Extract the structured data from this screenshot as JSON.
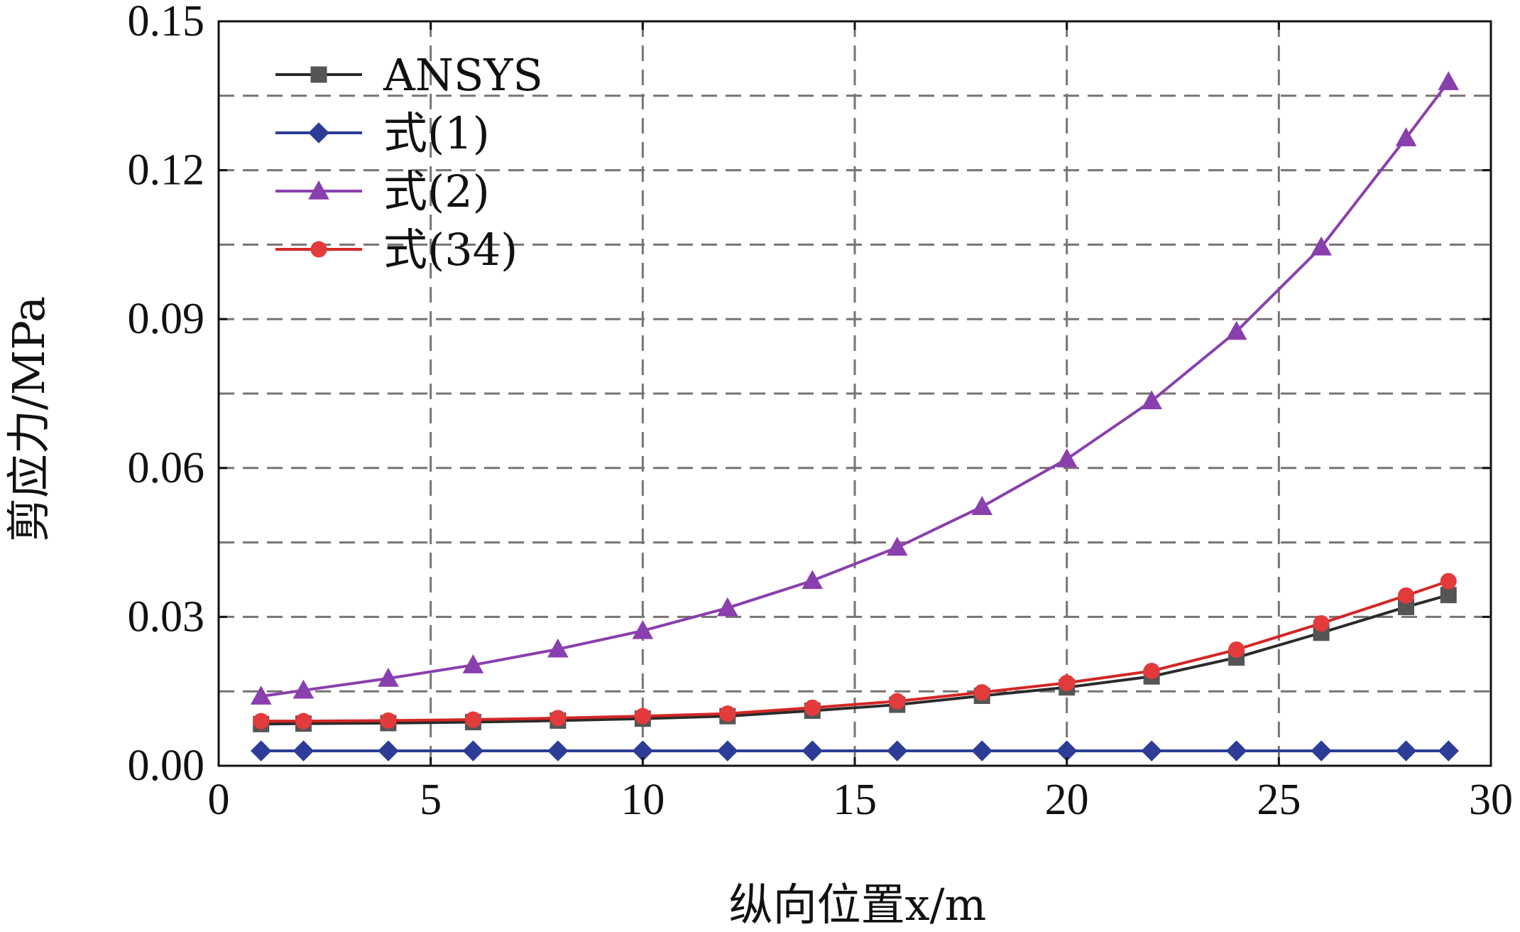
{
  "chart_data": {
    "type": "line",
    "xlabel": "纵向位置x/m",
    "ylabel": "剪应力/MPa",
    "xlim": [
      0,
      30
    ],
    "ylim": [
      0,
      0.15
    ],
    "x_ticks": [
      "0",
      "5",
      "10",
      "15",
      "20",
      "25",
      "30"
    ],
    "y_ticks": [
      "0.00",
      "0.03",
      "0.06",
      "0.09",
      "0.12",
      "0.15"
    ],
    "grid": true,
    "grid_style": "dashed",
    "legend_position": "top-left",
    "series": [
      {
        "name": "ANSYS",
        "color": "#2b2b2b",
        "marker_color": "#555555",
        "marker": "square",
        "x": [
          1,
          2,
          4,
          6,
          8,
          10,
          12,
          14,
          16,
          18,
          20,
          22,
          24,
          26,
          28,
          29
        ],
        "y": [
          0.0084,
          0.0085,
          0.0086,
          0.0088,
          0.0091,
          0.0095,
          0.01,
          0.0111,
          0.0123,
          0.0141,
          0.0158,
          0.018,
          0.0218,
          0.0268,
          0.032,
          0.0344
        ]
      },
      {
        "name": "式(1)",
        "color": "#2d3c96",
        "marker_color": "#2d3c96",
        "marker": "diamond",
        "x": [
          1,
          2,
          4,
          6,
          8,
          10,
          12,
          14,
          16,
          18,
          20,
          22,
          24,
          26,
          28,
          29
        ],
        "y": [
          0.003,
          0.003,
          0.003,
          0.003,
          0.003,
          0.003,
          0.003,
          0.003,
          0.003,
          0.003,
          0.003,
          0.003,
          0.003,
          0.003,
          0.003,
          0.003
        ]
      },
      {
        "name": "式(2)",
        "color": "#8a3fae",
        "marker_color": "#8a3fae",
        "marker": "triangle",
        "x": [
          1,
          2,
          4,
          6,
          8,
          10,
          12,
          14,
          16,
          18,
          20,
          22,
          24,
          26,
          28,
          29
        ],
        "y": [
          0.014,
          0.0152,
          0.0176,
          0.0203,
          0.0235,
          0.0272,
          0.0318,
          0.0373,
          0.044,
          0.0522,
          0.0618,
          0.0735,
          0.0875,
          0.1045,
          0.1265,
          0.1378
        ]
      },
      {
        "name": "式(34)",
        "color": "#d42626",
        "marker_color": "#e33b3b",
        "marker": "circle",
        "x": [
          1,
          2,
          4,
          6,
          8,
          10,
          12,
          14,
          16,
          18,
          20,
          22,
          24,
          26,
          28,
          29
        ],
        "y": [
          0.009,
          0.009,
          0.0091,
          0.0093,
          0.0096,
          0.01,
          0.0105,
          0.0117,
          0.013,
          0.0148,
          0.0167,
          0.0191,
          0.0234,
          0.0287,
          0.0343,
          0.0372
        ]
      }
    ]
  }
}
